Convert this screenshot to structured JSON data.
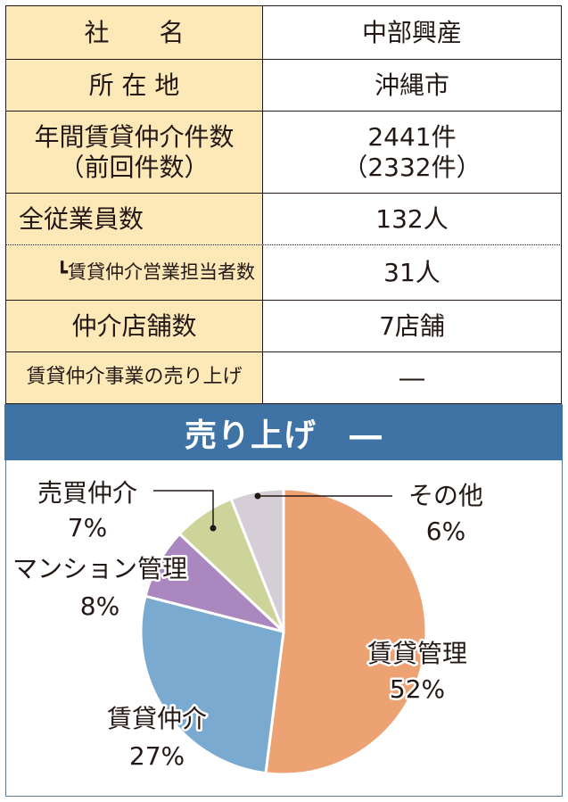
{
  "table": {
    "rows": [
      {
        "label": "社　　名",
        "value": "中部興産"
      },
      {
        "label": "所 在 地",
        "value": "沖縄市"
      },
      {
        "label": "年間賃貸仲介件数",
        "label2": "（前回件数）",
        "value": "2441件",
        "value2": "（2332件）"
      },
      {
        "label": "全従業員数",
        "value": "132人"
      },
      {
        "label": "┗賃貸仲介営業担当者数",
        "value": "31人"
      },
      {
        "label": "仲介店舗数",
        "value": "7店舗"
      },
      {
        "label": "賃貸仲介事業の売り上げ",
        "value": "―"
      }
    ]
  },
  "banner": {
    "title": "売り上げ　―"
  },
  "colors": {
    "label_bg": "#fde8b8",
    "banner_bg": "#3f73a6",
    "slice_rental_mgmt": "#eda273",
    "slice_rental_brokerage": "#7aaad0",
    "slice_condo_mgmt": "#ab87bf",
    "slice_sales_brokerage": "#ccd49a",
    "slice_other": "#d6ced6"
  },
  "chart_data": {
    "type": "pie",
    "title": "売り上げ　―",
    "categories": [
      "賃貸管理",
      "賃貸仲介",
      "マンション管理",
      "売買仲介",
      "その他"
    ],
    "values": [
      52,
      27,
      8,
      7,
      6
    ],
    "unit": "%",
    "start_angle": "12 o'clock",
    "direction": "clockwise",
    "labels": [
      {
        "name": "賃貸管理",
        "pct": "52%"
      },
      {
        "name": "賃貸仲介",
        "pct": "27%"
      },
      {
        "name": "マンション管理",
        "pct": "8%"
      },
      {
        "name": "売買仲介",
        "pct": "7%"
      },
      {
        "name": "その他",
        "pct": "6%"
      }
    ],
    "legend": "none (direct labels with leader lines for 売買仲介 and その他)"
  }
}
